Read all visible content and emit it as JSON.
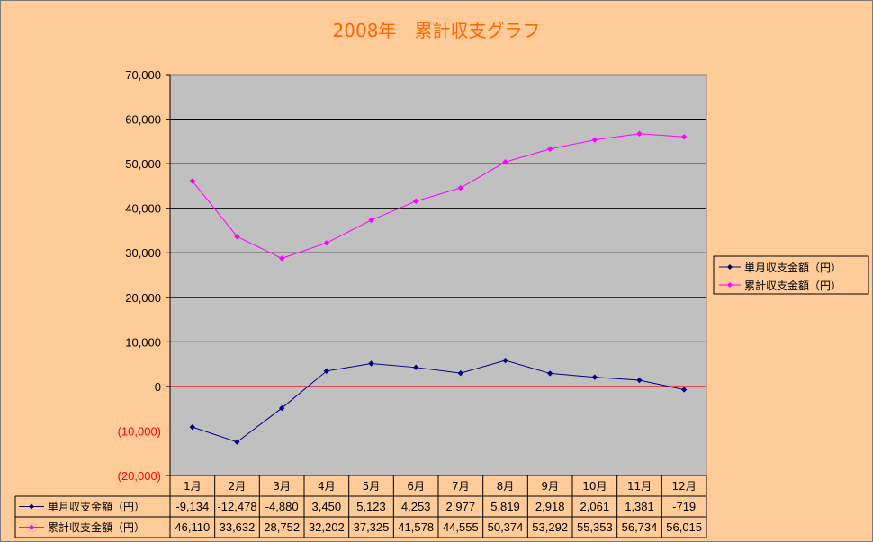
{
  "chart_data": {
    "type": "line",
    "title": "2008年　累計収支グラフ",
    "categories": [
      "1月",
      "2月",
      "3月",
      "4月",
      "5月",
      "6月",
      "7月",
      "8月",
      "9月",
      "10月",
      "11月",
      "12月"
    ],
    "series": [
      {
        "name": "単月収支金額（円）",
        "color": "#000080",
        "values": [
          -9134,
          -12478,
          -4880,
          3450,
          5123,
          4253,
          2977,
          5819,
          2918,
          2061,
          1381,
          -719
        ],
        "labels": [
          "-9,134",
          "-12,478",
          "-4,880",
          "3,450",
          "5,123",
          "4,253",
          "2,977",
          "5,819",
          "2,918",
          "2,061",
          "1,381",
          "-719"
        ]
      },
      {
        "name": "累計収支金額（円）",
        "color": "#FF00FF",
        "values": [
          46110,
          33632,
          28752,
          32202,
          37325,
          41578,
          44555,
          50374,
          53292,
          55353,
          56734,
          56015
        ],
        "labels": [
          "46,110",
          "33,632",
          "28,752",
          "32,202",
          "37,325",
          "41,578",
          "44,555",
          "50,374",
          "53,292",
          "55,353",
          "56,734",
          "56,015"
        ]
      }
    ],
    "ylim": [
      -20000,
      70000
    ],
    "yticks": [
      70000,
      60000,
      50000,
      40000,
      30000,
      20000,
      10000,
      0,
      -10000,
      -20000
    ],
    "ytick_labels": [
      "70,000",
      "60,000",
      "50,000",
      "40,000",
      "30,000",
      "20,000",
      "10,000",
      "0",
      "(10,000)",
      "(20,000)"
    ],
    "grid": true,
    "legend": "right",
    "data_table": true,
    "colors": {
      "background": "#FFCC99",
      "plot_area": "#C0C0C0",
      "title": "#FF6600",
      "zero_line": "#FF0000",
      "negative_tick": "#FF0000"
    }
  }
}
